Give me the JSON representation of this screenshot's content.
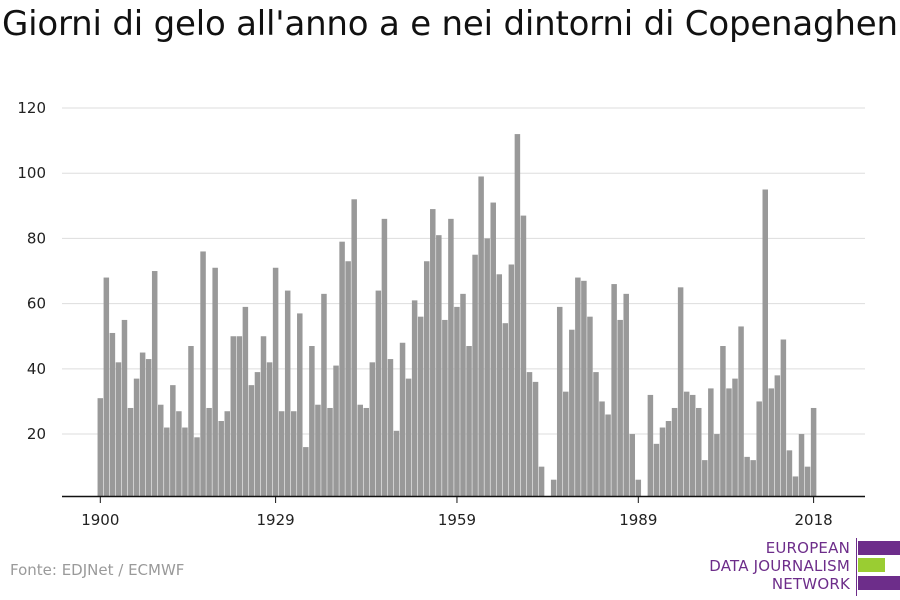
{
  "title": "Giorni di gelo all'anno a e nei dintorni di Copenaghen",
  "source": "Fonte: EDJNet / ECMWF",
  "logo": {
    "line1": "EUROPEAN",
    "line2": "DATA JOURNALISM",
    "line3": "NETWORK",
    "colors": [
      "#6d2d8a",
      "#9acd32",
      "#6d2d8a"
    ]
  },
  "colors": {
    "bar": "#999999",
    "grid": "#dddddd",
    "axis": "#111111"
  },
  "chart_data": {
    "type": "bar",
    "title": "Giorni di gelo all'anno a e nei dintorni di Copenaghen",
    "xlabel": "",
    "ylabel": "",
    "x": [
      1900,
      1901,
      1902,
      1903,
      1904,
      1905,
      1906,
      1907,
      1908,
      1909,
      1910,
      1911,
      1912,
      1913,
      1914,
      1915,
      1916,
      1917,
      1918,
      1919,
      1920,
      1921,
      1922,
      1923,
      1924,
      1925,
      1926,
      1927,
      1928,
      1929,
      1930,
      1931,
      1932,
      1933,
      1934,
      1935,
      1936,
      1937,
      1938,
      1939,
      1940,
      1941,
      1942,
      1943,
      1944,
      1945,
      1946,
      1947,
      1948,
      1949,
      1950,
      1951,
      1952,
      1953,
      1954,
      1955,
      1956,
      1957,
      1958,
      1959,
      1960,
      1961,
      1962,
      1963,
      1964,
      1965,
      1966,
      1967,
      1968,
      1969,
      1970,
      1971,
      1972,
      1973,
      1974,
      1975,
      1976,
      1977,
      1978,
      1979,
      1980,
      1981,
      1982,
      1983,
      1984,
      1985,
      1986,
      1987,
      1988,
      1989,
      1990,
      1991,
      1992,
      1993,
      1994,
      1995,
      1996,
      1997,
      1998,
      1999,
      2000,
      2001,
      2002,
      2003,
      2004,
      2005,
      2006,
      2007,
      2008,
      2009,
      2010,
      2011,
      2012,
      2013,
      2014,
      2015,
      2016,
      2017,
      2018
    ],
    "values": [
      31,
      68,
      51,
      42,
      55,
      28,
      37,
      45,
      43,
      70,
      29,
      22,
      35,
      27,
      22,
      47,
      19,
      76,
      28,
      71,
      24,
      27,
      50,
      50,
      59,
      35,
      39,
      50,
      42,
      71,
      27,
      64,
      27,
      57,
      16,
      47,
      29,
      63,
      28,
      41,
      79,
      73,
      92,
      29,
      28,
      42,
      64,
      86,
      43,
      21,
      48,
      37,
      61,
      56,
      73,
      89,
      81,
      55,
      86,
      59,
      63,
      47,
      75,
      99,
      80,
      91,
      69,
      54,
      72,
      112,
      87,
      39,
      36,
      10,
      0,
      6,
      59,
      33,
      52,
      68,
      67,
      56,
      39,
      30,
      26,
      66,
      55,
      63,
      20,
      6,
      0,
      32,
      17,
      22,
      24,
      28,
      65,
      33,
      32,
      28,
      12,
      34,
      20,
      47,
      34,
      37,
      53,
      13,
      12,
      30,
      95,
      34,
      38,
      49,
      15,
      7,
      20,
      10,
      28
    ],
    "xticks": [
      1900,
      1929,
      1959,
      1989,
      2018
    ],
    "xtick_labels": [
      "1900",
      "1929",
      "1959",
      "1989",
      "2018"
    ],
    "yticks": [
      20,
      40,
      60,
      80,
      100,
      120
    ],
    "ytick_labels": [
      "20",
      "40",
      "60",
      "80",
      "100",
      "120"
    ],
    "ylim": [
      1,
      120
    ],
    "xlim": [
      1900,
      2018
    ],
    "grid": true,
    "legend": "none"
  }
}
